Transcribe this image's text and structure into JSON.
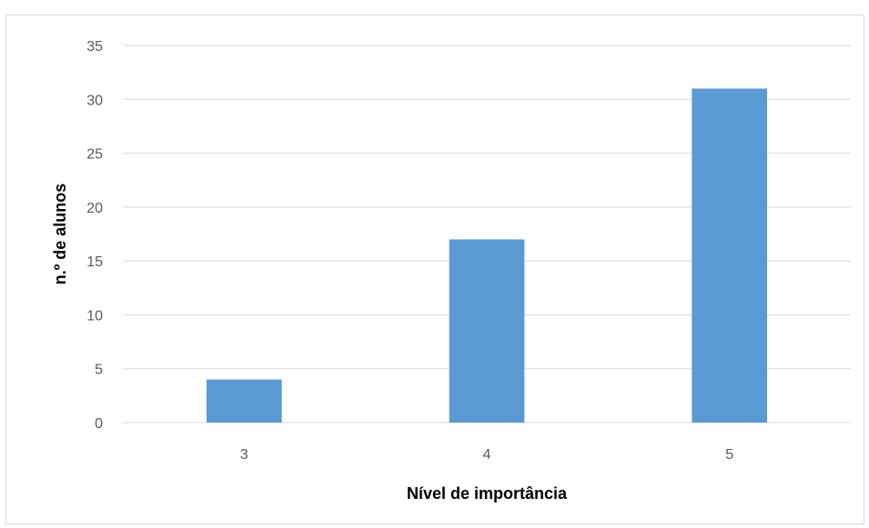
{
  "chart_data": {
    "type": "bar",
    "categories": [
      "3",
      "4",
      "5"
    ],
    "values": [
      4,
      17,
      31
    ],
    "title": "",
    "xlabel": "Nível de importância",
    "ylabel": "n.º de alunos",
    "ylim": [
      0,
      35
    ],
    "yticks": [
      0,
      5,
      10,
      15,
      20,
      25,
      30,
      35
    ],
    "grid": true,
    "legend": "none",
    "colors": {
      "bar": "#5b9bd5",
      "grid": "#d9d9d9",
      "tick_text": "#595959",
      "axis_title": "#000000"
    }
  }
}
